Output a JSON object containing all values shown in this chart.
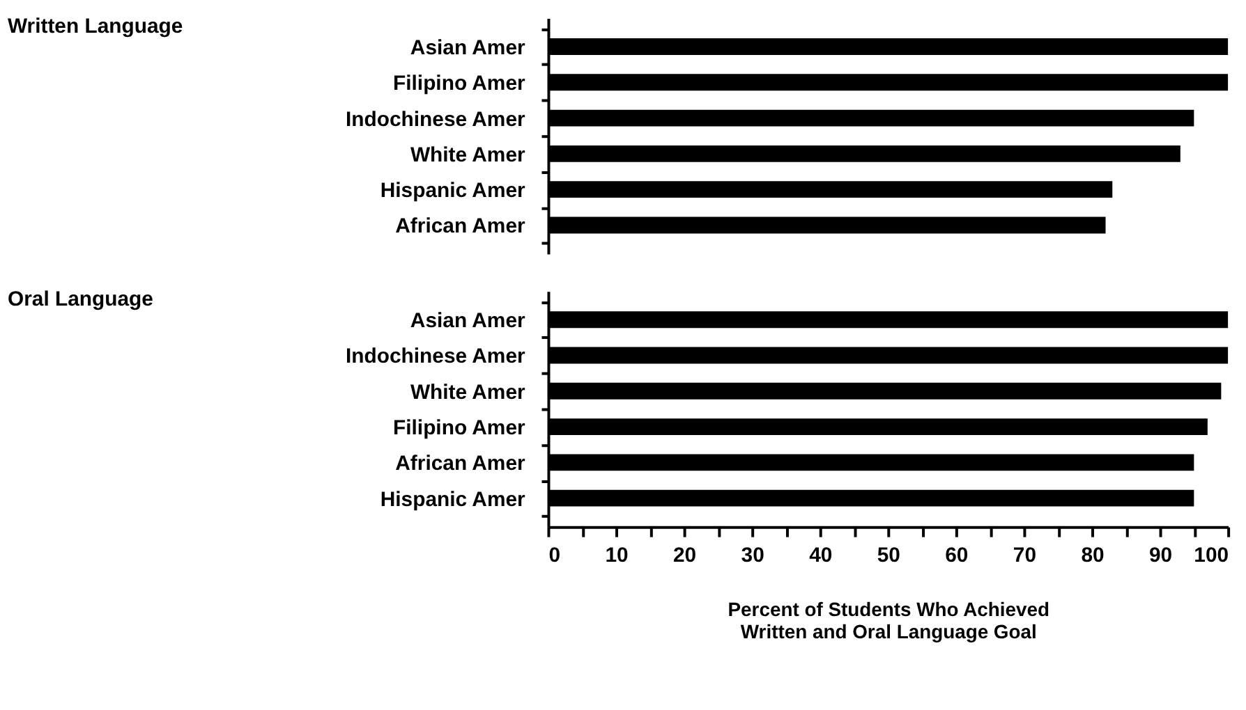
{
  "chart_data": [
    {
      "type": "bar",
      "orientation": "horizontal",
      "ylabel": "Written Language",
      "categories": [
        "Asian Amer",
        "Filipino Amer",
        "Indochinese Amer",
        "White Amer",
        "Hispanic Amer",
        "African Amer"
      ],
      "values": [
        100,
        100,
        95,
        93,
        83,
        82
      ],
      "color": "#000000",
      "xlim": [
        0,
        100
      ],
      "tick_labels": "y",
      "grid": false
    },
    {
      "type": "bar",
      "orientation": "horizontal",
      "ylabel": "Oral Language",
      "categories": [
        "Asian Amer",
        "Indochinese Amer",
        "White Amer",
        "Filipino Amer",
        "African Amer",
        "Hispanic Amer"
      ],
      "values": [
        100,
        100,
        99,
        97,
        95,
        95
      ],
      "color": "#000000",
      "xlim": [
        0,
        100
      ],
      "xticks": [
        0,
        {
          "value": 5,
          "label": null
        },
        10,
        {
          "value": 15,
          "label": null
        },
        20,
        {
          "value": 25,
          "label": null
        },
        30,
        {
          "value": 35,
          "label": null
        },
        40,
        {
          "value": 45,
          "label": null
        },
        50,
        {
          "value": 55,
          "label": null
        },
        60,
        {
          "value": 65,
          "label": null
        },
        70,
        {
          "value": 75,
          "label": null
        },
        80,
        {
          "value": 85,
          "label": null
        },
        90,
        {
          "value": 95,
          "label": null
        },
        100
      ],
      "xlabel": "Percent of Students Who Achieved\nWritten and Oral Language Goal",
      "grid": false
    }
  ]
}
